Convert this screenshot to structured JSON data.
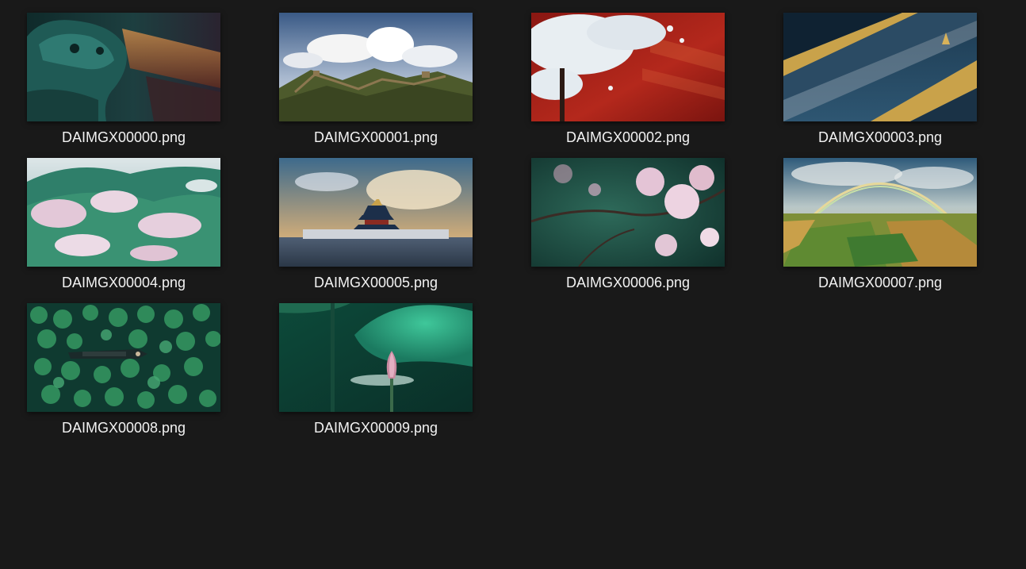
{
  "files": [
    {
      "name": "DAIMGX00000.png",
      "thumb_icon": "bronze-lion-statue-thumbnail"
    },
    {
      "name": "DAIMGX00001.png",
      "thumb_icon": "great-wall-mountains-thumbnail"
    },
    {
      "name": "DAIMGX00002.png",
      "thumb_icon": "white-blossom-red-wall-thumbnail"
    },
    {
      "name": "DAIMGX00003.png",
      "thumb_icon": "palace-roof-thumbnail"
    },
    {
      "name": "DAIMGX00004.png",
      "thumb_icon": "blossoming-hills-thumbnail"
    },
    {
      "name": "DAIMGX00005.png",
      "thumb_icon": "temple-of-heaven-thumbnail"
    },
    {
      "name": "DAIMGX00006.png",
      "thumb_icon": "pink-blossom-branches-thumbnail"
    },
    {
      "name": "DAIMGX00007.png",
      "thumb_icon": "rainbow-over-fields-thumbnail"
    },
    {
      "name": "DAIMGX00008.png",
      "thumb_icon": "boat-in-lotus-pond-thumbnail"
    },
    {
      "name": "DAIMGX00009.png",
      "thumb_icon": "lotus-bud-thumbnail"
    }
  ],
  "colors": {
    "background": "#191919",
    "label_text": "#f2f2f2"
  }
}
